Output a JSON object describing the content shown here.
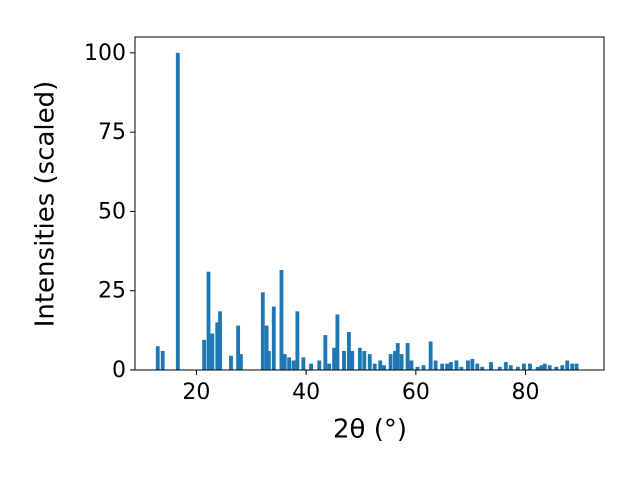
{
  "chart_data": {
    "type": "bar",
    "x_label": "2θ (°)",
    "y_label": "Intensities (scaled)",
    "color": "#1f77b4",
    "x": [
      12.95,
      13.85,
      16.6,
      21.4,
      22.2,
      22.9,
      23.8,
      24.3,
      26.3,
      27.6,
      28.1,
      32.1,
      32.8,
      33.2,
      34.1,
      35.5,
      36.1,
      36.9,
      37.7,
      38.4,
      39.5,
      40.9,
      42.4,
      43.5,
      44.2,
      45.1,
      45.7,
      46.9,
      47.8,
      48.4,
      49.8,
      50.6,
      51.6,
      52.5,
      53.5,
      54.2,
      55.4,
      56.2,
      56.7,
      57.4,
      58.5,
      59.2,
      60.3,
      61.4,
      62.7,
      63.6,
      64.8,
      65.7,
      66.4,
      67.4,
      68.3,
      69.5,
      70.3,
      71.2,
      72.1,
      73.7,
      75.3,
      76.4,
      77.3,
      78.6,
      79.7,
      80.8,
      82.2,
      82.9,
      83.5,
      84.4,
      85.6,
      86.7,
      87.6,
      88.5,
      89.3
    ],
    "values": [
      7.5,
      6,
      100,
      9.5,
      31,
      11.5,
      15,
      18.5,
      4.5,
      14,
      5,
      24.5,
      14,
      6,
      20,
      31.5,
      5,
      4,
      3,
      18.5,
      4,
      2,
      3,
      11,
      2,
      7,
      17.5,
      6,
      12,
      6,
      7,
      6,
      5,
      2,
      3,
      1.5,
      5,
      6,
      8.5,
      5,
      8.5,
      3,
      1,
      1.5,
      9,
      3,
      2,
      2,
      2.5,
      3,
      1,
      3,
      3.5,
      2,
      1,
      2.5,
      1,
      2.5,
      1.5,
      1,
      2,
      2,
      1,
      1.5,
      2,
      1.5,
      1,
      1.5,
      3,
      2,
      2
    ],
    "xlim": [
      8.8,
      94.3
    ],
    "ylim": [
      0,
      105
    ],
    "xticks": [
      20,
      40,
      60,
      80
    ],
    "yticks": [
      0,
      25,
      50,
      75,
      100
    ]
  }
}
